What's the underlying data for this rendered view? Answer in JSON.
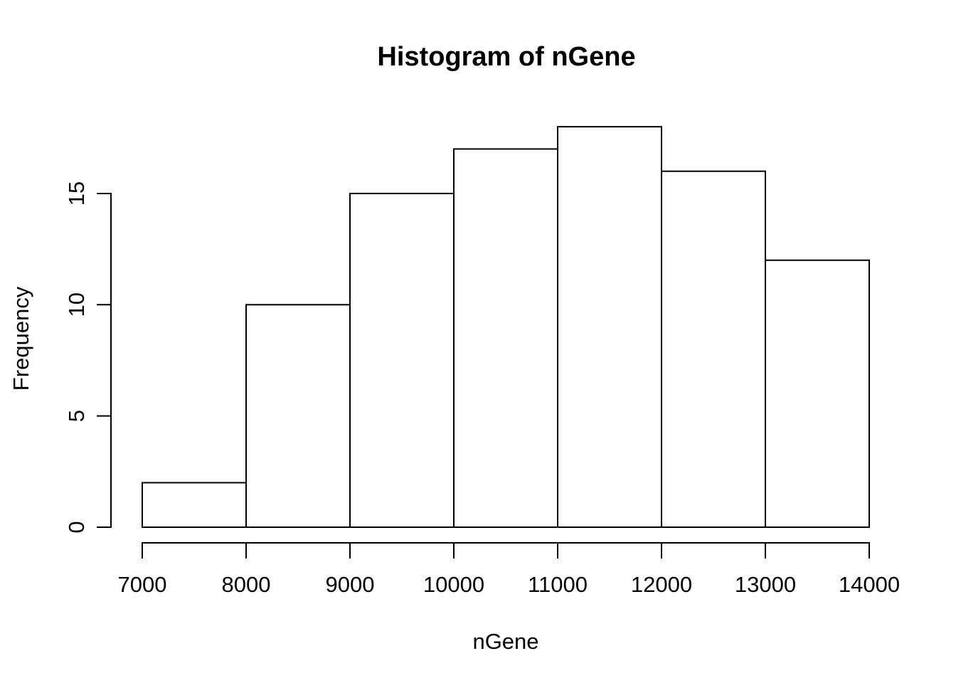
{
  "page": {
    "background_color": "#ffffff"
  },
  "chart_data": {
    "type": "bar",
    "subtype": "histogram",
    "title": "Histogram of nGene",
    "xlabel": "nGene",
    "ylabel": "Frequency",
    "bin_edges": [
      7000,
      8000,
      9000,
      10000,
      11000,
      12000,
      13000,
      14000
    ],
    "counts": [
      2,
      10,
      15,
      17,
      18,
      16,
      12
    ],
    "x_ticks": [
      "7000",
      "8000",
      "9000",
      "10000",
      "11000",
      "12000",
      "13000",
      "14000"
    ],
    "x_tick_values": [
      7000,
      8000,
      9000,
      10000,
      11000,
      12000,
      13000,
      14000
    ],
    "y_ticks": [
      "0",
      "5",
      "10",
      "15"
    ],
    "y_tick_values": [
      0,
      5,
      10,
      15
    ],
    "xlim": [
      7000,
      14000
    ],
    "ylim": [
      0,
      18
    ],
    "y_axis_line_range": [
      0,
      15
    ],
    "grid": false,
    "legend_position": "none",
    "bar_fill": "#ffffff",
    "bar_stroke": "#000000",
    "axis_color": "#000000",
    "text_color": "#000000"
  }
}
